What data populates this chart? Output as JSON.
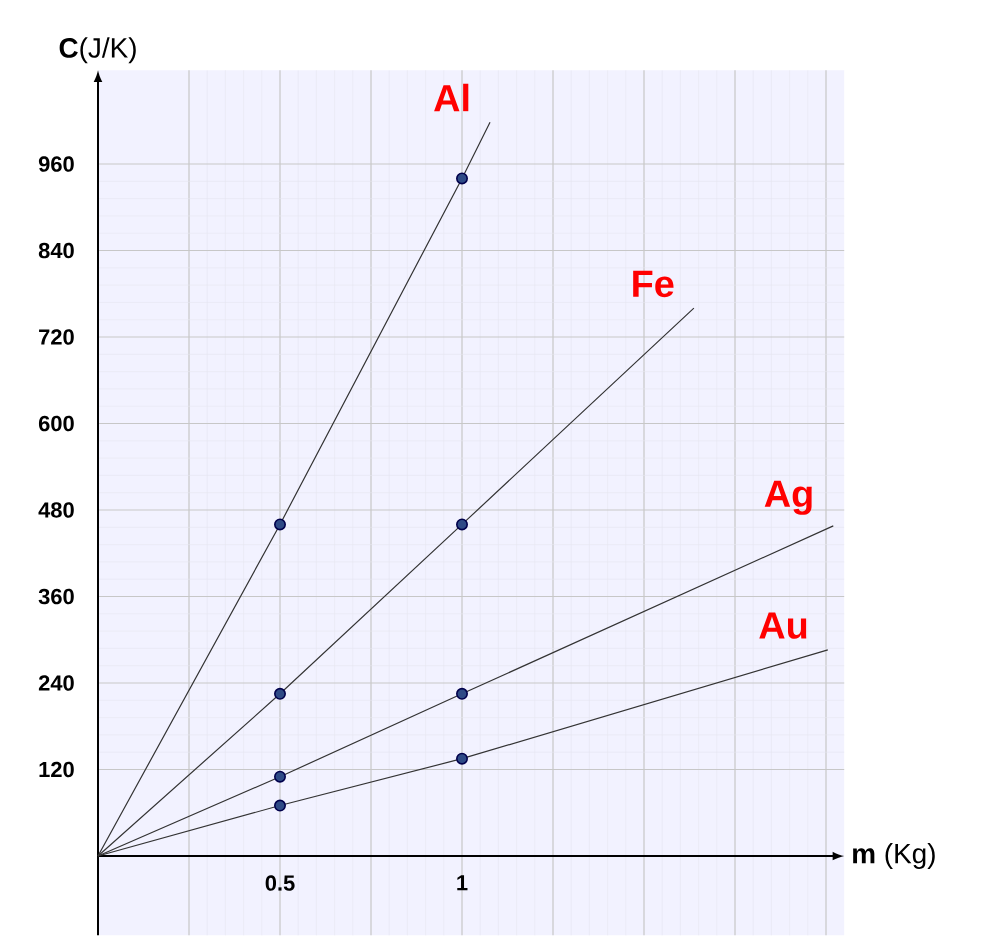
{
  "chart_data": {
    "type": "line",
    "xlabel": "**m** (Kg)",
    "ylabel": "**C**(J/K)",
    "xlim": [
      0,
      2.05
    ],
    "ylim": [
      -110,
      1090
    ],
    "xticks": [
      {
        "value": 0.25,
        "label": null
      },
      0.5,
      {
        "value": 0.75,
        "label": null
      },
      1,
      {
        "value": 1.25,
        "label": null
      },
      {
        "value": 1.5,
        "label": null
      },
      {
        "value": 1.75,
        "label": null
      },
      {
        "value": 2,
        "label": null
      }
    ],
    "yticks": [
      120,
      240,
      360,
      480,
      600,
      720,
      840,
      960
    ],
    "grid": true,
    "line_style": "solid",
    "series": [
      {
        "name": "Al",
        "color": "#333333",
        "x": [
          0,
          0.5,
          1,
          1.077
        ],
        "values": [
          0,
          460,
          940,
          1018
        ]
      },
      {
        "name": "Fe",
        "color": "#333333",
        "x": [
          0,
          0.5,
          1,
          1.637
        ],
        "values": [
          0,
          225,
          460,
          760
        ]
      },
      {
        "name": "Ag",
        "color": "#333333",
        "x": [
          0,
          0.5,
          1,
          2.02
        ],
        "values": [
          0,
          110,
          225,
          458
        ]
      },
      {
        "name": "Au",
        "color": "#333333",
        "x": [
          0,
          0.5,
          1,
          2.005
        ],
        "values": [
          0,
          70,
          135,
          286
        ]
      },
      {
        "type": "scatter",
        "color": "#2e4a86",
        "x": [
          0.5,
          1,
          0.5,
          1,
          0.5,
          1,
          0.5,
          1
        ],
        "values": [
          460,
          940,
          225,
          460,
          110,
          225,
          70,
          135
        ]
      }
    ]
  }
}
